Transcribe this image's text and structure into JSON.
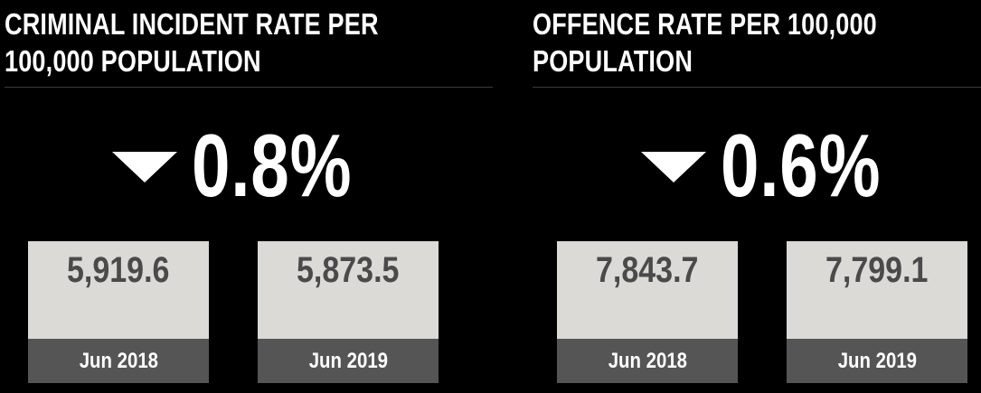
{
  "panels": [
    {
      "title_line1": "CRIMINAL INCIDENT RATE PER",
      "title_line2": "100,000 POPULATION",
      "change_direction_icon": "down-triangle-icon",
      "change": "0.8%",
      "cards": [
        {
          "value": "5,919.6",
          "label": "Jun 2018"
        },
        {
          "value": "5,873.5",
          "label": "Jun 2019"
        }
      ]
    },
    {
      "title_line1": "OFFENCE RATE PER 100,000",
      "title_line2": "POPULATION",
      "change_direction_icon": "down-triangle-icon",
      "change": "0.6%",
      "cards": [
        {
          "value": "7,843.7",
          "label": "Jun 2018"
        },
        {
          "value": "7,799.1",
          "label": "Jun 2019"
        }
      ]
    }
  ],
  "colors": {
    "background": "#000000",
    "card_value_bg": "#dcdad6",
    "card_value_text": "#4a4a4a",
    "card_label_bg": "#555555",
    "text": "#ffffff"
  }
}
